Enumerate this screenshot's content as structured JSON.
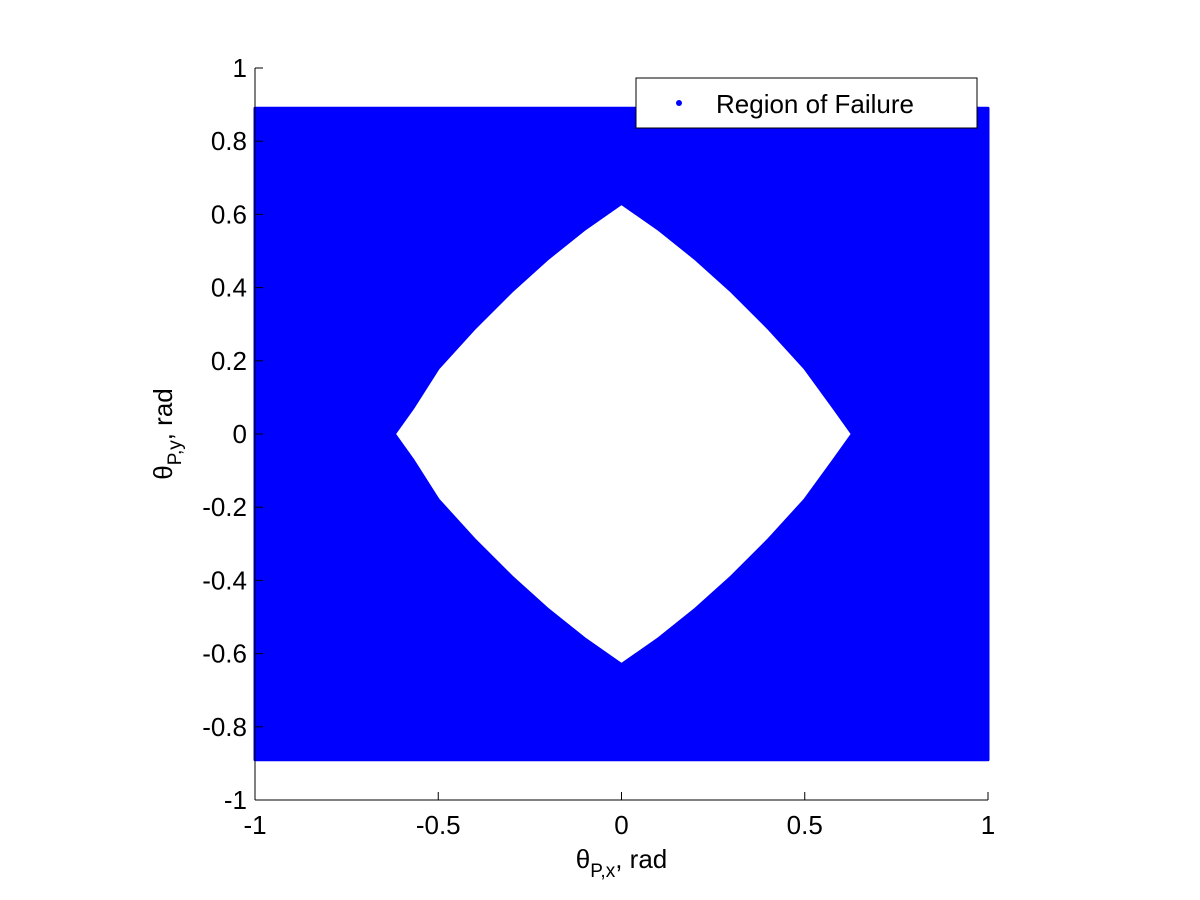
{
  "chart_data": {
    "type": "scatter",
    "xlabel": {
      "base": "θ",
      "sub": "P,x",
      "suffix": ", rad"
    },
    "ylabel": {
      "base": "θ",
      "sub": "P,y",
      "suffix": ", rad"
    },
    "xlim": [
      -1,
      1
    ],
    "ylim": [
      -1,
      1
    ],
    "xticks": [
      -1,
      -0.5,
      0,
      0.5,
      1
    ],
    "yticks": [
      -1,
      -0.8,
      -0.6,
      -0.4,
      -0.2,
      0,
      0.2,
      0.4,
      0.6,
      0.8,
      1
    ],
    "xtick_labels": [
      "-1",
      "-0.5",
      "0",
      "0.5",
      "1"
    ],
    "ytick_labels": [
      "-1",
      "-0.8",
      "-0.6",
      "-0.4",
      "-0.2",
      "0",
      "0.2",
      "0.4",
      "0.6",
      "0.8",
      "1"
    ],
    "grid": false,
    "legend_position": "top-right",
    "series": [
      {
        "name": "Region of Failure",
        "color": "#0000ff",
        "marker": "point",
        "region": {
          "outer_x": [
            -1,
            1
          ],
          "outer_y": [
            -0.89,
            0.89
          ],
          "excluded_boundary": [
            [
              0.0,
              0.63
            ],
            [
              0.1,
              0.56
            ],
            [
              0.2,
              0.48
            ],
            [
              0.3,
              0.39
            ],
            [
              0.4,
              0.29
            ],
            [
              0.5,
              0.18
            ],
            [
              0.58,
              0.07
            ],
            [
              0.63,
              0.0
            ],
            [
              0.58,
              -0.07
            ],
            [
              0.5,
              -0.18
            ],
            [
              0.4,
              -0.29
            ],
            [
              0.3,
              -0.39
            ],
            [
              0.2,
              -0.48
            ],
            [
              0.1,
              -0.56
            ],
            [
              0.0,
              -0.63
            ],
            [
              -0.1,
              -0.56
            ],
            [
              -0.2,
              -0.48
            ],
            [
              -0.3,
              -0.39
            ],
            [
              -0.4,
              -0.29
            ],
            [
              -0.5,
              -0.18
            ],
            [
              -0.57,
              -0.07
            ],
            [
              -0.62,
              0.0
            ],
            [
              -0.57,
              0.07
            ],
            [
              -0.5,
              0.18
            ],
            [
              -0.4,
              0.29
            ],
            [
              -0.3,
              0.39
            ],
            [
              -0.2,
              0.48
            ],
            [
              -0.1,
              0.56
            ]
          ]
        }
      }
    ]
  }
}
